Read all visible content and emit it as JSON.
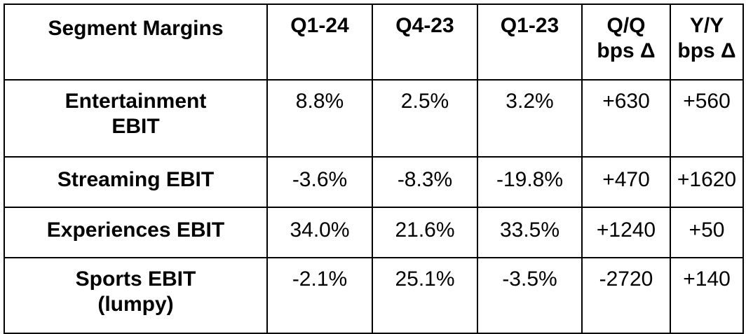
{
  "table": {
    "headers": [
      "Segment Margins",
      "Q1-24",
      "Q4-23",
      "Q1-23",
      "Q/Q\nbps Δ",
      "Y/Y\nbps Δ"
    ],
    "rows": [
      [
        "Entertainment\nEBIT",
        "8.8%",
        "2.5%",
        "3.2%",
        "+630",
        "+560"
      ],
      [
        "Streaming EBIT",
        "-3.6%",
        "-8.3%",
        "-19.8%",
        "+470",
        "+1620"
      ],
      [
        "Experiences EBIT",
        "34.0%",
        "21.6%",
        "33.5%",
        "+1240",
        "+50"
      ],
      [
        "Sports EBIT\n(lumpy)",
        "-2.1%",
        "25.1%",
        "-3.5%",
        "-2720",
        "+140"
      ]
    ]
  }
}
